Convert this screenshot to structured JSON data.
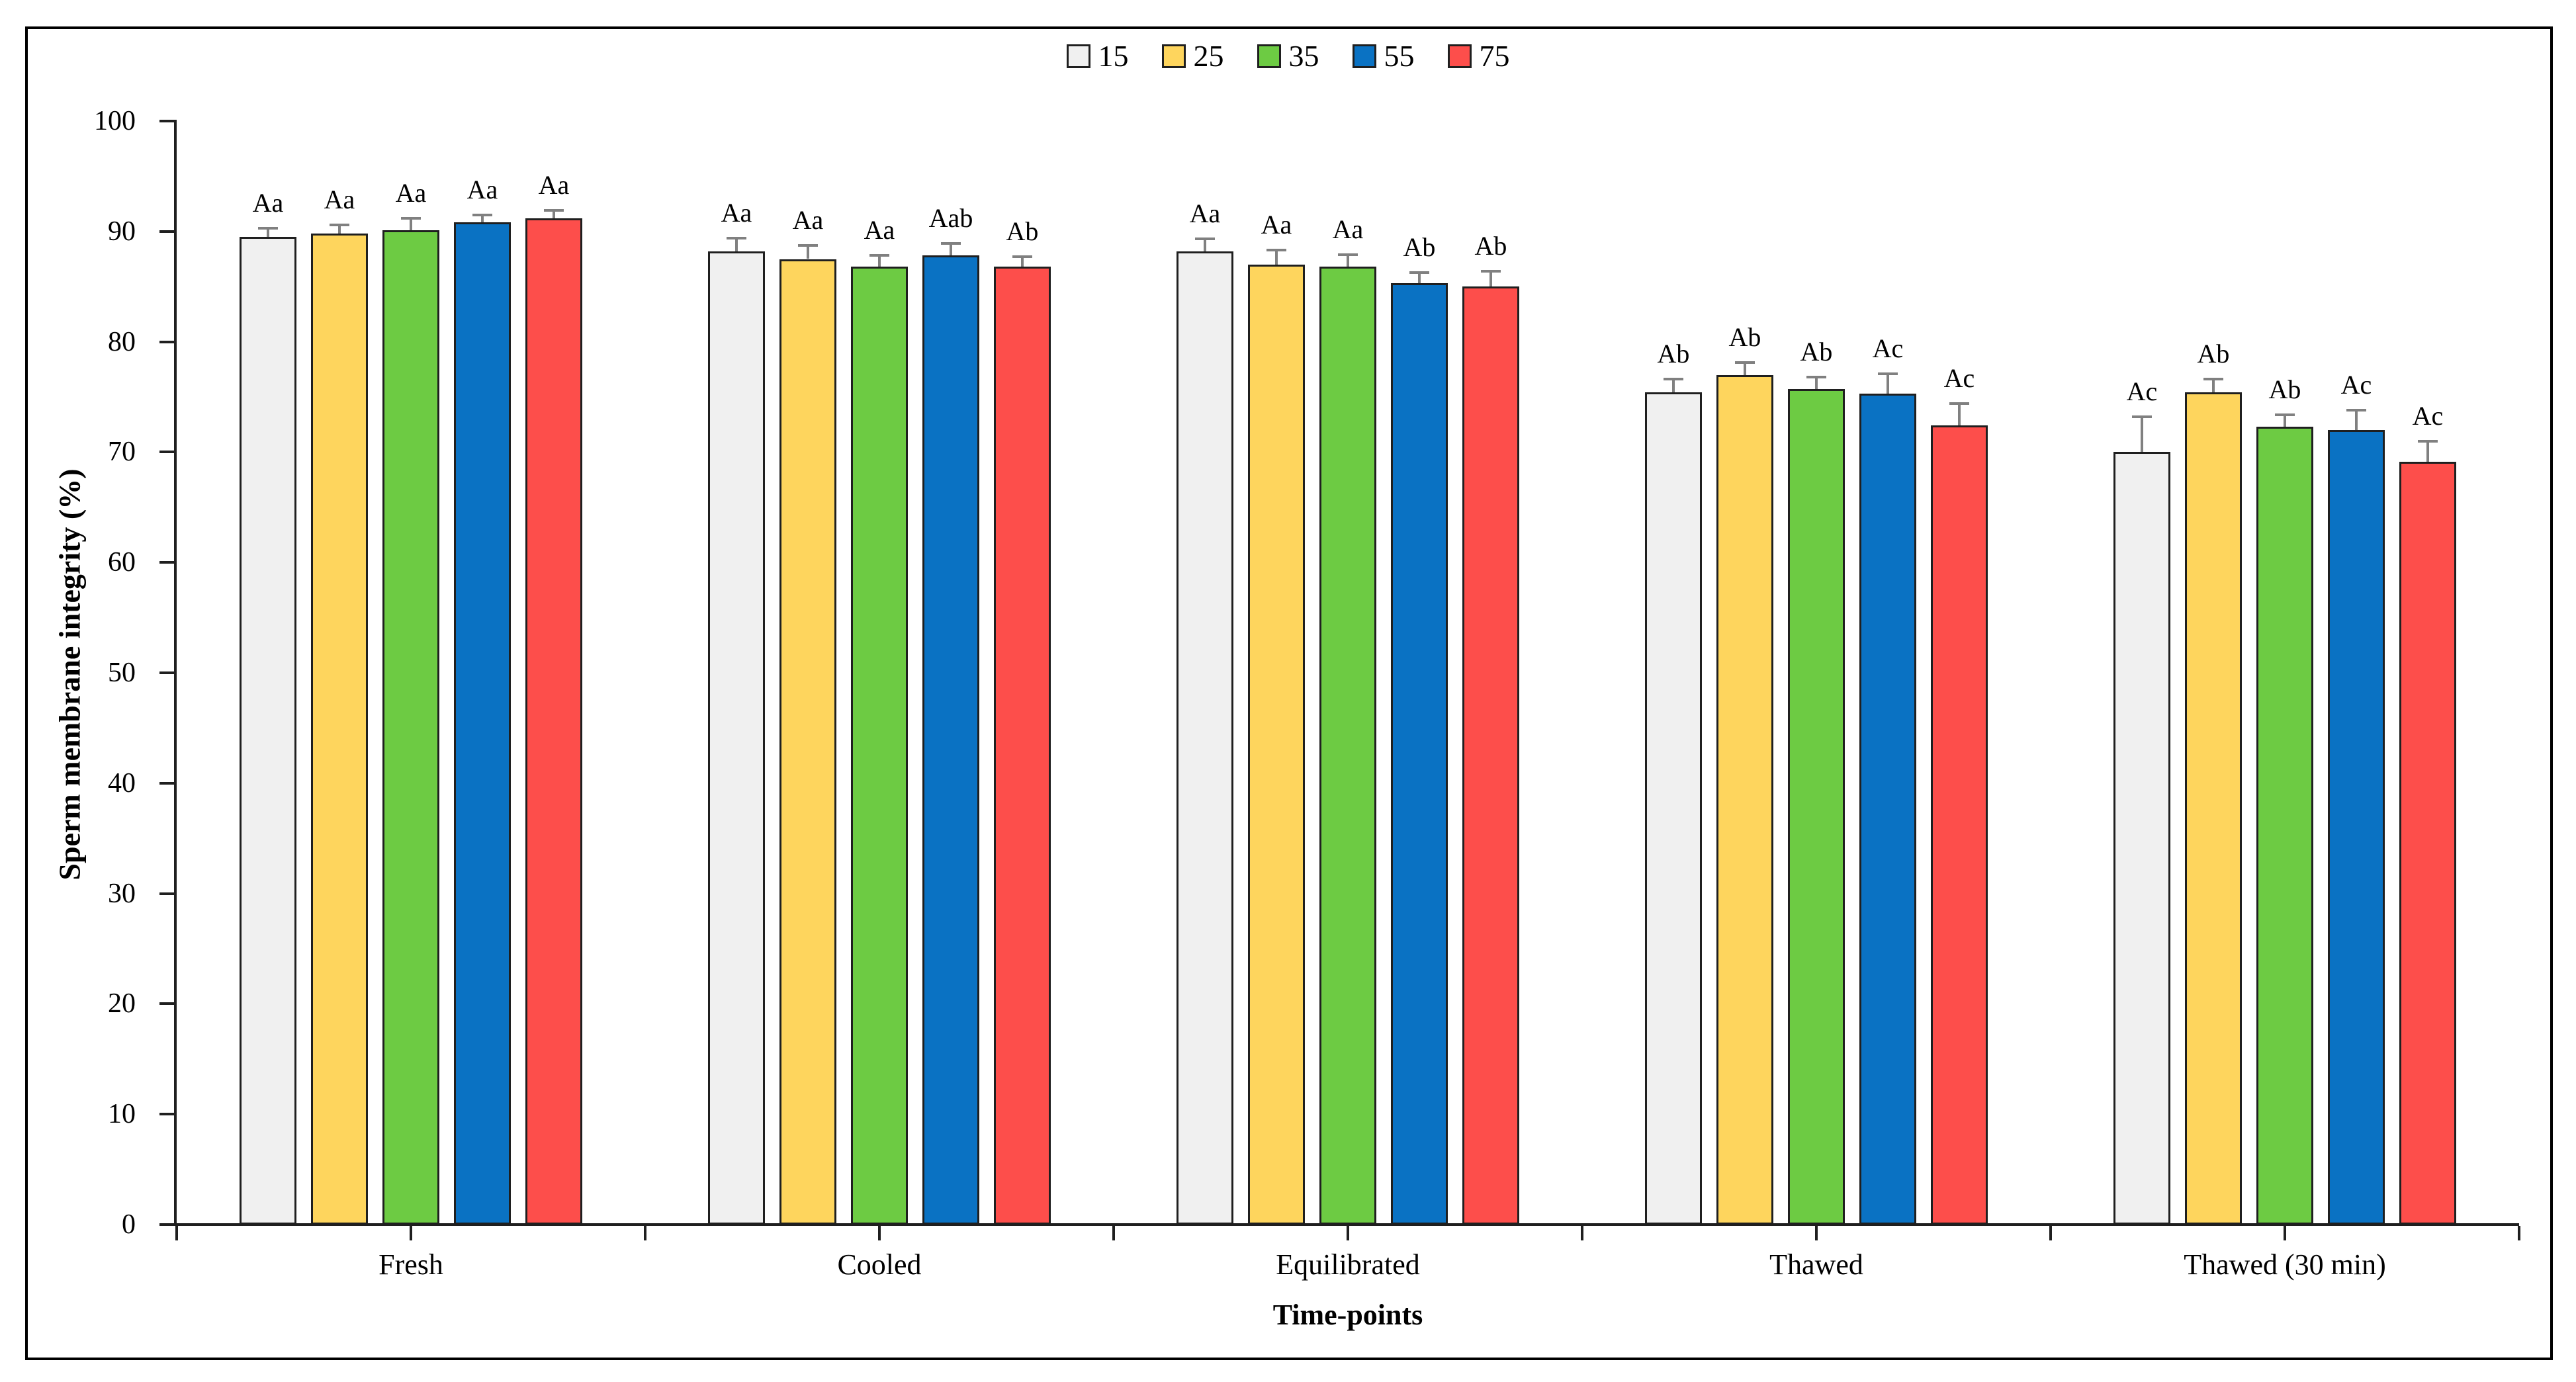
{
  "figure": {
    "background": "#ffffff",
    "frame_border_color": "#000000",
    "axis_color": "#1f1f1f",
    "bar_border_color": "#1f1f1f",
    "error_bar_color": "#808080"
  },
  "chart_data": {
    "type": "bar",
    "title": "",
    "xlabel": "Time-points",
    "ylabel": "Sperm membrane integrity (%)",
    "ylim": [
      0,
      100
    ],
    "yticks": [
      0,
      10,
      20,
      30,
      40,
      50,
      60,
      70,
      80,
      90,
      100
    ],
    "grid": false,
    "legend_position": "top-center",
    "legend_entries": [
      "15",
      "25",
      "35",
      "55",
      "75"
    ],
    "categories": [
      "Fresh",
      "Cooled",
      "Equilibrated",
      "Thawed",
      "Thawed (30 min)"
    ],
    "series": [
      {
        "name": "15",
        "color": "#f0f0f0",
        "values": [
          89.5,
          88.2,
          88.2,
          75.4,
          70.0
        ],
        "errors": [
          0.8,
          1.2,
          1.1,
          1.2,
          3.2
        ],
        "sig_labels": [
          "Aa",
          "Aa",
          "Aa",
          "Ab",
          "Ac"
        ]
      },
      {
        "name": "25",
        "color": "#fed55d",
        "values": [
          89.8,
          87.5,
          87.0,
          77.0,
          75.4
        ],
        "errors": [
          0.8,
          1.2,
          1.3,
          1.1,
          1.2
        ],
        "sig_labels": [
          "Aa",
          "Aa",
          "Aa",
          "Ab",
          "Ab"
        ]
      },
      {
        "name": "35",
        "color": "#6dcb43",
        "values": [
          90.1,
          86.8,
          86.8,
          75.7,
          72.3
        ],
        "errors": [
          1.1,
          1.0,
          1.1,
          1.1,
          1.1
        ],
        "sig_labels": [
          "Aa",
          "Aa",
          "Aa",
          "Ab",
          "Ab"
        ]
      },
      {
        "name": "55",
        "color": "#0a72c3",
        "values": [
          90.8,
          87.8,
          85.3,
          75.3,
          72.0
        ],
        "errors": [
          0.7,
          1.1,
          1.0,
          1.8,
          1.8
        ],
        "sig_labels": [
          "Aa",
          "Aab",
          "Ab",
          "Ac",
          "Ac"
        ]
      },
      {
        "name": "75",
        "color": "#fd4e4b",
        "values": [
          91.2,
          86.8,
          85.0,
          72.4,
          69.1
        ],
        "errors": [
          0.7,
          0.9,
          1.4,
          2.0,
          1.9
        ],
        "sig_labels": [
          "Aa",
          "Ab",
          "Ab",
          "Ac",
          "Ac"
        ]
      }
    ]
  }
}
